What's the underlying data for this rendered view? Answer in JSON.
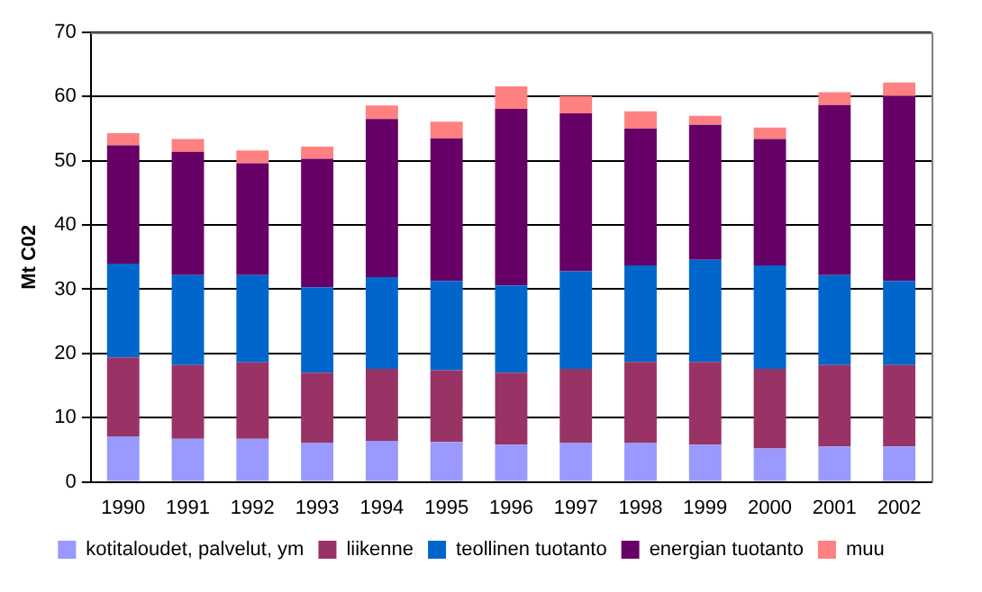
{
  "chart_data": {
    "type": "bar",
    "stacked": true,
    "ylabel": "Mt C02",
    "categories": [
      "1990",
      "1991",
      "1992",
      "1993",
      "1994",
      "1995",
      "1996",
      "1997",
      "1998",
      "1999",
      "2000",
      "2001",
      "2002"
    ],
    "series": [
      {
        "name": "kotitaloudet, palvelut, ym",
        "color": "#9999ff",
        "values": [
          7.1,
          6.7,
          6.7,
          6.1,
          6.4,
          6.2,
          5.8,
          6.1,
          6.1,
          5.8,
          5.2,
          5.5,
          5.5
        ]
      },
      {
        "name": "liikenne",
        "color": "#993366",
        "values": [
          12.3,
          11.5,
          11.9,
          10.9,
          11.2,
          11.2,
          11.2,
          11.5,
          12.6,
          12.9,
          12.4,
          12.7,
          12.7
        ]
      },
      {
        "name": "teollinen tuotanto",
        "color": "#0066cc",
        "values": [
          14.6,
          14.0,
          13.6,
          13.3,
          14.3,
          13.9,
          13.6,
          15.2,
          15.0,
          15.9,
          16.1,
          14.0,
          13.1
        ]
      },
      {
        "name": "energian tuotanto",
        "color": "#660066",
        "values": [
          18.4,
          19.2,
          17.4,
          20.0,
          24.6,
          22.2,
          27.5,
          24.6,
          21.3,
          21.0,
          19.7,
          26.5,
          28.8
        ]
      },
      {
        "name": "muu",
        "color": "#ff8080",
        "values": [
          1.9,
          2.0,
          2.0,
          1.9,
          2.1,
          2.6,
          3.5,
          2.7,
          2.7,
          1.4,
          1.8,
          2.0,
          2.1
        ]
      }
    ],
    "ylim": [
      0,
      70
    ],
    "yticks": [
      0,
      10,
      20,
      30,
      40,
      50,
      60,
      70
    ],
    "grid": "y",
    "legend": "bottom"
  }
}
